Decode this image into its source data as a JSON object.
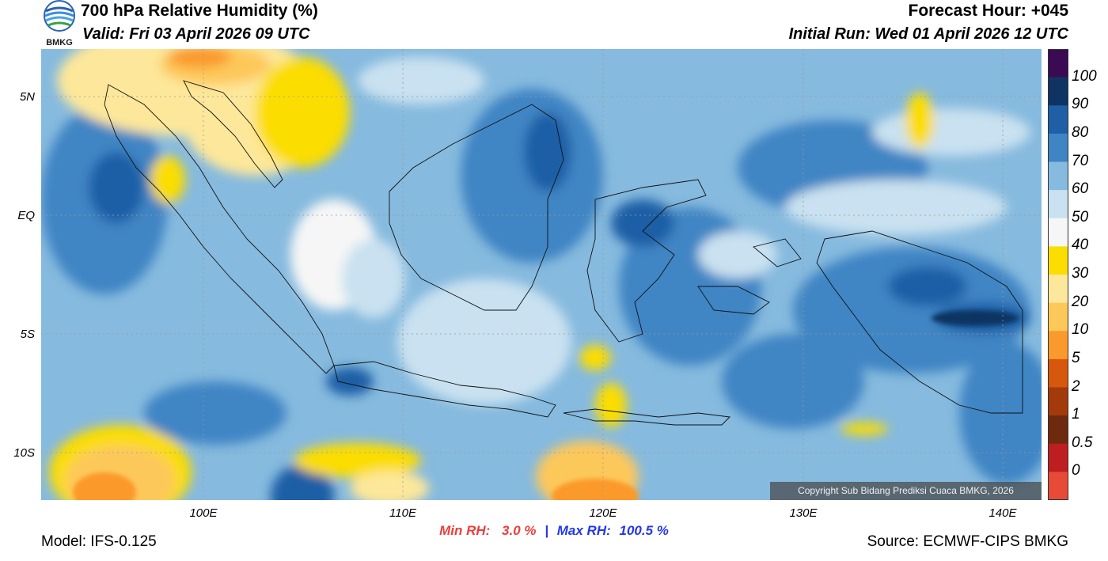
{
  "header": {
    "title": "700 hPa Relative Humidity (%)",
    "valid": "Valid: Fri 03 April 2026 09 UTC",
    "forecast_hour": "Forecast Hour: +045",
    "initial_run": "Initial Run: Wed 01 April 2026 12 UTC",
    "logo_text": "BMKG"
  },
  "map": {
    "lat_labels": [
      "5N",
      "EQ",
      "5S",
      "10S"
    ],
    "lon_labels": [
      "100E",
      "110E",
      "120E",
      "130E",
      "140E"
    ],
    "copyright": "Copyright Sub Bidang Prediksi Cuaca BMKG, 2026"
  },
  "colorbar": {
    "labels": [
      "100",
      "90",
      "80",
      "70",
      "60",
      "50",
      "40",
      "30",
      "20",
      "10",
      "5",
      "2",
      "1",
      "0.5",
      "0"
    ],
    "colors": [
      "#3a0a52",
      "#0f3463",
      "#1f5fa6",
      "#3f85c4",
      "#86bade",
      "#c9e1f0",
      "#f6f6f6",
      "#fbdd00",
      "#fde79a",
      "#fdc85a",
      "#fb9a2c",
      "#d7580c",
      "#a23a0c",
      "#6e2a0e",
      "#bf1e21",
      "#e84a38"
    ]
  },
  "footer": {
    "model": "Model: IFS-0.125",
    "min_label": "Min RH:",
    "min_value": "3.0 %",
    "separator": "|",
    "max_label": "Max RH:",
    "max_value": "100.5 %",
    "source": "Source: ECMWF-CIPS BMKG"
  },
  "palette": {
    "sea_mid": "#86bade",
    "sea_dark": "#3f85c4",
    "sea_light": "#c9e1f0",
    "dry": "#fbdd00",
    "very_dry": "#fdc85a"
  }
}
